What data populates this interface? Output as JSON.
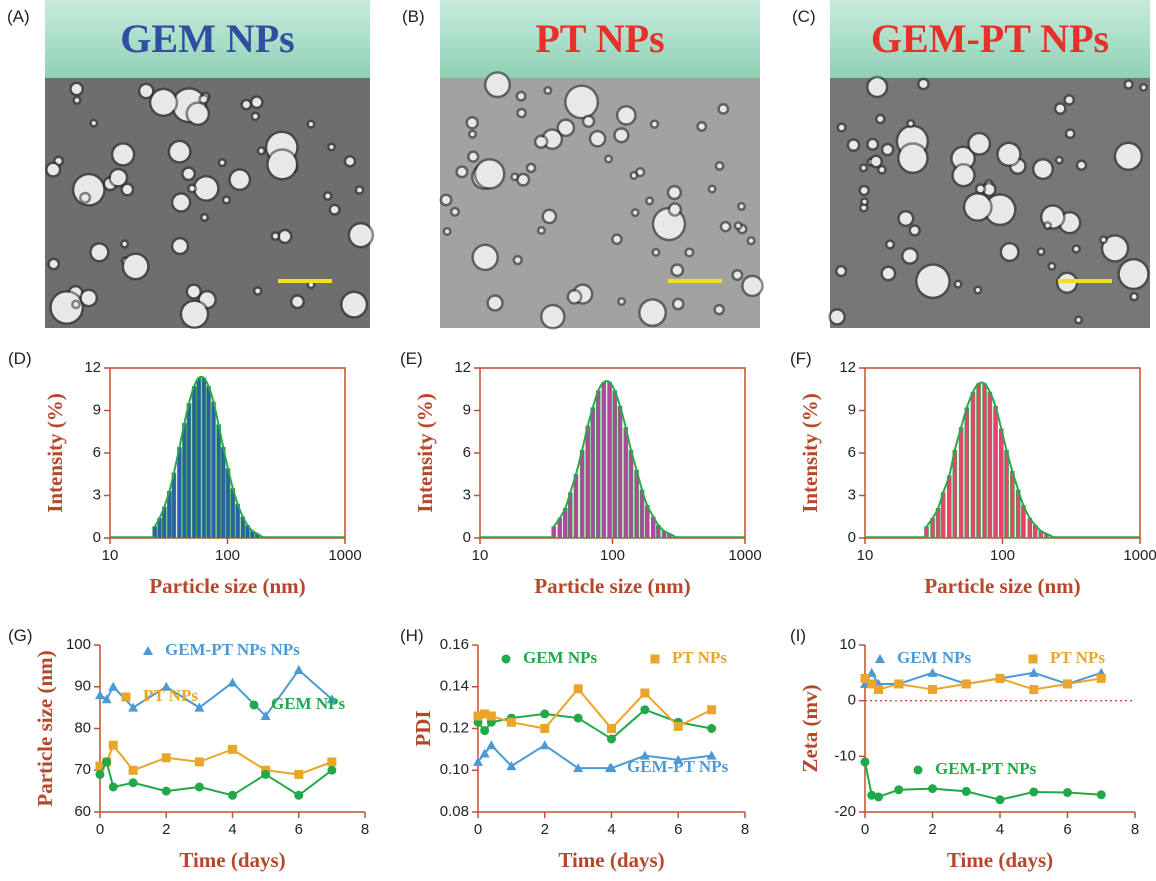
{
  "image_panels": [
    {
      "label": "(A)",
      "title": "GEM NPs",
      "title_color": "#2f4fa2"
    },
    {
      "label": "(B)",
      "title": "PT NPs",
      "title_color": "#e8302a"
    },
    {
      "label": "(C)",
      "title": "GEM-PT NPs",
      "title_color": "#e8302a"
    }
  ],
  "chart_data": [
    {
      "type": "bar",
      "label": "(D)",
      "xlabel": "Particle size (nm)",
      "ylabel": "Intensity (%)",
      "xscale": "log",
      "box": true,
      "xlim": [
        10,
        1000
      ],
      "xticks": [
        10,
        100,
        1000
      ],
      "ylim": [
        0,
        12
      ],
      "yticks": [
        0,
        3,
        6,
        9,
        12
      ],
      "color": "#2e5ea6",
      "fit_color": "#2aa84a",
      "x": [
        24,
        26.4,
        29,
        32,
        35,
        39,
        43,
        47,
        52,
        57,
        63,
        69,
        76,
        84,
        92,
        101,
        111,
        122,
        135,
        148,
        163,
        179,
        197
      ],
      "values": [
        0.8,
        1.4,
        2.2,
        3.3,
        4.6,
        6.4,
        8.1,
        9.5,
        10.7,
        11.3,
        11.3,
        10.7,
        9.6,
        8.0,
        6.4,
        4.9,
        3.5,
        2.4,
        1.5,
        0.9,
        0.5,
        0.3,
        0.1
      ]
    },
    {
      "type": "bar",
      "label": "(E)",
      "xlabel": "Particle size (nm)",
      "ylabel": "Intensity (%)",
      "xscale": "log",
      "box": true,
      "xlim": [
        10,
        1000
      ],
      "xticks": [
        10,
        100,
        1000
      ],
      "ylim": [
        0,
        12
      ],
      "yticks": [
        0,
        3,
        6,
        9,
        12
      ],
      "color": "#b0479c",
      "fit_color": "#2aa84a",
      "x": [
        36,
        40,
        44,
        48,
        53,
        59,
        65,
        71,
        78,
        86,
        95,
        104,
        114,
        126,
        138,
        152,
        167,
        183,
        203,
        222,
        245,
        269,
        296
      ],
      "values": [
        0.8,
        1.4,
        2.1,
        3.2,
        4.5,
        6.2,
        7.9,
        9.2,
        10.4,
        11.0,
        11.0,
        10.4,
        9.3,
        7.8,
        6.2,
        4.8,
        3.4,
        2.3,
        1.5,
        0.9,
        0.5,
        0.3,
        0.1
      ]
    },
    {
      "type": "bar",
      "label": "(F)",
      "xlabel": "Particle size (nm)",
      "ylabel": "Intensity (%)",
      "xscale": "log",
      "box": true,
      "xlim": [
        10,
        1000
      ],
      "xticks": [
        10,
        100,
        1000
      ],
      "ylim": [
        0,
        12
      ],
      "yticks": [
        0,
        3,
        6,
        9,
        12
      ],
      "color": "#e8436e",
      "fit_color": "#2aa84a",
      "x": [
        28,
        31,
        34,
        37,
        41,
        45,
        50,
        55,
        61,
        67,
        74,
        81,
        89,
        98,
        107,
        118,
        130,
        142,
        158,
        173,
        190,
        209,
        230
      ],
      "values": [
        0.8,
        1.4,
        2.1,
        3.2,
        4.4,
        6.2,
        7.8,
        9.2,
        10.3,
        10.9,
        10.9,
        10.3,
        9.3,
        7.7,
        6.2,
        4.7,
        3.4,
        2.3,
        1.4,
        0.9,
        0.5,
        0.3,
        0.1
      ]
    },
    {
      "type": "line",
      "label": "(G)",
      "xlabel": "Time (days)",
      "ylabel": "Particle size (nm)",
      "xlim": [
        0,
        8
      ],
      "xticks": [
        0,
        2,
        4,
        6,
        8
      ],
      "ylim": [
        60,
        100
      ],
      "yticks": [
        60,
        70,
        80,
        90,
        100
      ],
      "x": [
        0,
        0.2,
        0.4,
        1,
        2,
        3,
        4,
        5,
        6,
        7
      ],
      "series": [
        {
          "name": "GEM-PT NPs NPs",
          "color": "#4a9ad6",
          "marker": "triangle",
          "values": [
            88,
            87,
            90,
            85,
            90,
            85,
            91,
            83,
            94,
            87
          ]
        },
        {
          "name": "PT NPs",
          "color": "#eba52a",
          "marker": "square",
          "values": [
            71,
            72,
            76,
            70,
            73,
            72,
            75,
            70,
            69,
            72
          ]
        },
        {
          "name": "GEM NPs",
          "color": "#21a849",
          "marker": "circle",
          "values": [
            69,
            72,
            66,
            67,
            65,
            66,
            64,
            69,
            64,
            70
          ]
        }
      ]
    },
    {
      "type": "line",
      "label": "(H)",
      "xlabel": "Time (days)",
      "ylabel": "PDI",
      "xlim": [
        0,
        8
      ],
      "xticks": [
        0,
        2,
        4,
        6,
        8
      ],
      "ylim": [
        0.08,
        0.16
      ],
      "yticks": [
        0.08,
        {
          "value": 0.1,
          "label": "0.10"
        },
        0.12,
        0.14,
        0.16
      ],
      "x": [
        0,
        0.2,
        0.4,
        1,
        2,
        3,
        4,
        5,
        6,
        7
      ],
      "series": [
        {
          "name": "GEM NPs",
          "color": "#21a849",
          "marker": "circle",
          "values": [
            0.123,
            0.119,
            0.123,
            0.125,
            0.127,
            0.125,
            0.115,
            0.129,
            0.123,
            0.12
          ]
        },
        {
          "name": "PT NPs",
          "color": "#eba52a",
          "marker": "square",
          "values": [
            0.126,
            0.127,
            0.126,
            0.123,
            0.12,
            0.139,
            0.12,
            0.137,
            0.121,
            0.129
          ]
        },
        {
          "name": "GEM-PT NPs",
          "color": "#4a9ad6",
          "marker": "triangle",
          "values": [
            0.104,
            0.108,
            0.112,
            0.102,
            0.112,
            0.101,
            0.101,
            0.107,
            0.105,
            0.107
          ]
        }
      ]
    },
    {
      "type": "line",
      "label": "(I)",
      "xlabel": "Time (days)",
      "ylabel": "Zeta (mv)",
      "zero_line": true,
      "xlim": [
        0,
        8
      ],
      "xticks": [
        0,
        2,
        4,
        6,
        8
      ],
      "ylim": [
        -20,
        10
      ],
      "yticks": [
        -20,
        -10,
        0,
        10
      ],
      "x": [
        0,
        0.2,
        0.4,
        1,
        2,
        3,
        4,
        5,
        6,
        7
      ],
      "series": [
        {
          "name": "GEM NPs",
          "color": "#4a9ad6",
          "marker": "triangle",
          "values": [
            3,
            5,
            3,
            3,
            5,
            3,
            4,
            5,
            3,
            5
          ]
        },
        {
          "name": "PT NPs",
          "color": "#eba52a",
          "marker": "square",
          "values": [
            4,
            3,
            2,
            3,
            2,
            3,
            4,
            2,
            3,
            4
          ]
        },
        {
          "name": "GEM-PT NPs",
          "color": "#21a849",
          "marker": "circle",
          "values": [
            -11,
            -17,
            -17.3,
            -16,
            -15.8,
            -16.3,
            -17.8,
            -16.4,
            -16.5,
            -16.9
          ]
        }
      ]
    }
  ]
}
